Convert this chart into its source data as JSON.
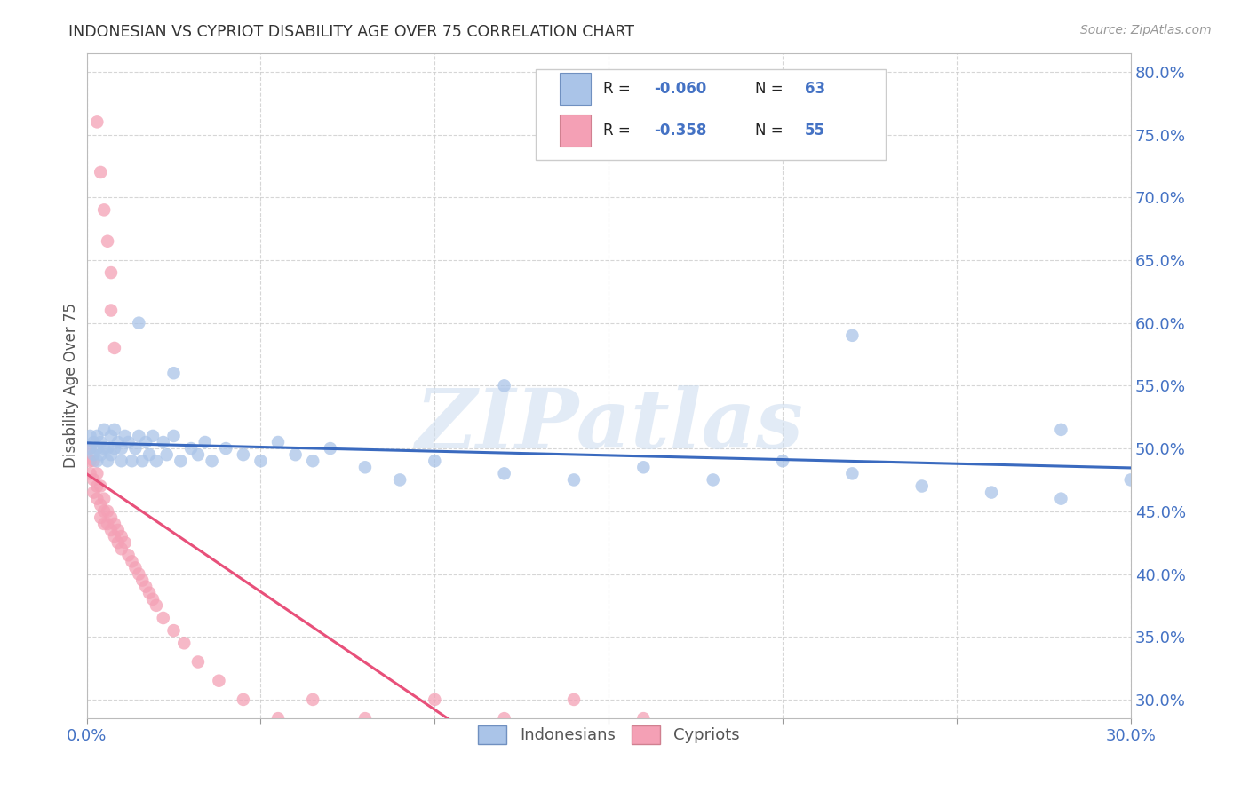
{
  "title": "INDONESIAN VS CYPRIOT DISABILITY AGE OVER 75 CORRELATION CHART",
  "source": "Source: ZipAtlas.com",
  "ylabel": "Disability Age Over 75",
  "xlabel": "",
  "xlim": [
    0.0,
    0.3
  ],
  "ylim": [
    0.285,
    0.815
  ],
  "xtick_vals": [
    0.0,
    0.05,
    0.1,
    0.15,
    0.2,
    0.25,
    0.3
  ],
  "xticklabels": [
    "0.0%",
    "",
    "",
    "",
    "",
    "",
    "30.0%"
  ],
  "ytick_vals": [
    0.3,
    0.35,
    0.4,
    0.45,
    0.5,
    0.55,
    0.6,
    0.65,
    0.7,
    0.75,
    0.8
  ],
  "yticklabels": [
    "30.0%",
    "35.0%",
    "40.0%",
    "45.0%",
    "50.0%",
    "55.0%",
    "60.0%",
    "65.0%",
    "70.0%",
    "75.0%",
    "80.0%"
  ],
  "indonesian_R": -0.06,
  "indonesian_N": 63,
  "cypriot_R": -0.358,
  "cypriot_N": 55,
  "blue_color": "#aac4e8",
  "pink_color": "#f4a0b5",
  "blue_line_color": "#3a6abf",
  "pink_line_color": "#e8507a",
  "indonesian_x": [
    0.001,
    0.001,
    0.002,
    0.002,
    0.003,
    0.003,
    0.003,
    0.004,
    0.004,
    0.005,
    0.005,
    0.006,
    0.006,
    0.007,
    0.007,
    0.008,
    0.008,
    0.009,
    0.01,
    0.01,
    0.011,
    0.012,
    0.013,
    0.014,
    0.015,
    0.016,
    0.017,
    0.018,
    0.019,
    0.02,
    0.022,
    0.023,
    0.025,
    0.027,
    0.03,
    0.032,
    0.034,
    0.036,
    0.04,
    0.045,
    0.05,
    0.055,
    0.06,
    0.065,
    0.07,
    0.08,
    0.09,
    0.1,
    0.12,
    0.14,
    0.16,
    0.18,
    0.2,
    0.22,
    0.24,
    0.26,
    0.28,
    0.3,
    0.015,
    0.025,
    0.12,
    0.22,
    0.28
  ],
  "indonesian_y": [
    0.5,
    0.51,
    0.495,
    0.505,
    0.5,
    0.51,
    0.49,
    0.505,
    0.495,
    0.5,
    0.515,
    0.5,
    0.49,
    0.51,
    0.495,
    0.5,
    0.515,
    0.505,
    0.49,
    0.5,
    0.51,
    0.505,
    0.49,
    0.5,
    0.51,
    0.49,
    0.505,
    0.495,
    0.51,
    0.49,
    0.505,
    0.495,
    0.51,
    0.49,
    0.5,
    0.495,
    0.505,
    0.49,
    0.5,
    0.495,
    0.49,
    0.505,
    0.495,
    0.49,
    0.5,
    0.485,
    0.475,
    0.49,
    0.48,
    0.475,
    0.485,
    0.475,
    0.49,
    0.48,
    0.47,
    0.465,
    0.46,
    0.475,
    0.6,
    0.56,
    0.55,
    0.59,
    0.515
  ],
  "cypriot_x": [
    0.001,
    0.001,
    0.001,
    0.002,
    0.002,
    0.002,
    0.003,
    0.003,
    0.003,
    0.004,
    0.004,
    0.004,
    0.005,
    0.005,
    0.005,
    0.006,
    0.006,
    0.007,
    0.007,
    0.008,
    0.008,
    0.009,
    0.009,
    0.01,
    0.01,
    0.011,
    0.012,
    0.013,
    0.014,
    0.015,
    0.016,
    0.017,
    0.018,
    0.019,
    0.02,
    0.022,
    0.025,
    0.028,
    0.032,
    0.038,
    0.045,
    0.055,
    0.065,
    0.08,
    0.1,
    0.12,
    0.14,
    0.16,
    0.003,
    0.004,
    0.005,
    0.006,
    0.007,
    0.007,
    0.008
  ],
  "cypriot_y": [
    0.5,
    0.49,
    0.48,
    0.49,
    0.475,
    0.465,
    0.48,
    0.47,
    0.46,
    0.47,
    0.455,
    0.445,
    0.46,
    0.45,
    0.44,
    0.45,
    0.44,
    0.445,
    0.435,
    0.44,
    0.43,
    0.435,
    0.425,
    0.43,
    0.42,
    0.425,
    0.415,
    0.41,
    0.405,
    0.4,
    0.395,
    0.39,
    0.385,
    0.38,
    0.375,
    0.365,
    0.355,
    0.345,
    0.33,
    0.315,
    0.3,
    0.285,
    0.3,
    0.285,
    0.3,
    0.285,
    0.3,
    0.285,
    0.76,
    0.72,
    0.69,
    0.665,
    0.64,
    0.61,
    0.58
  ],
  "watermark_text": "ZIPatlas",
  "background_color": "#ffffff",
  "grid_color": "#cccccc"
}
